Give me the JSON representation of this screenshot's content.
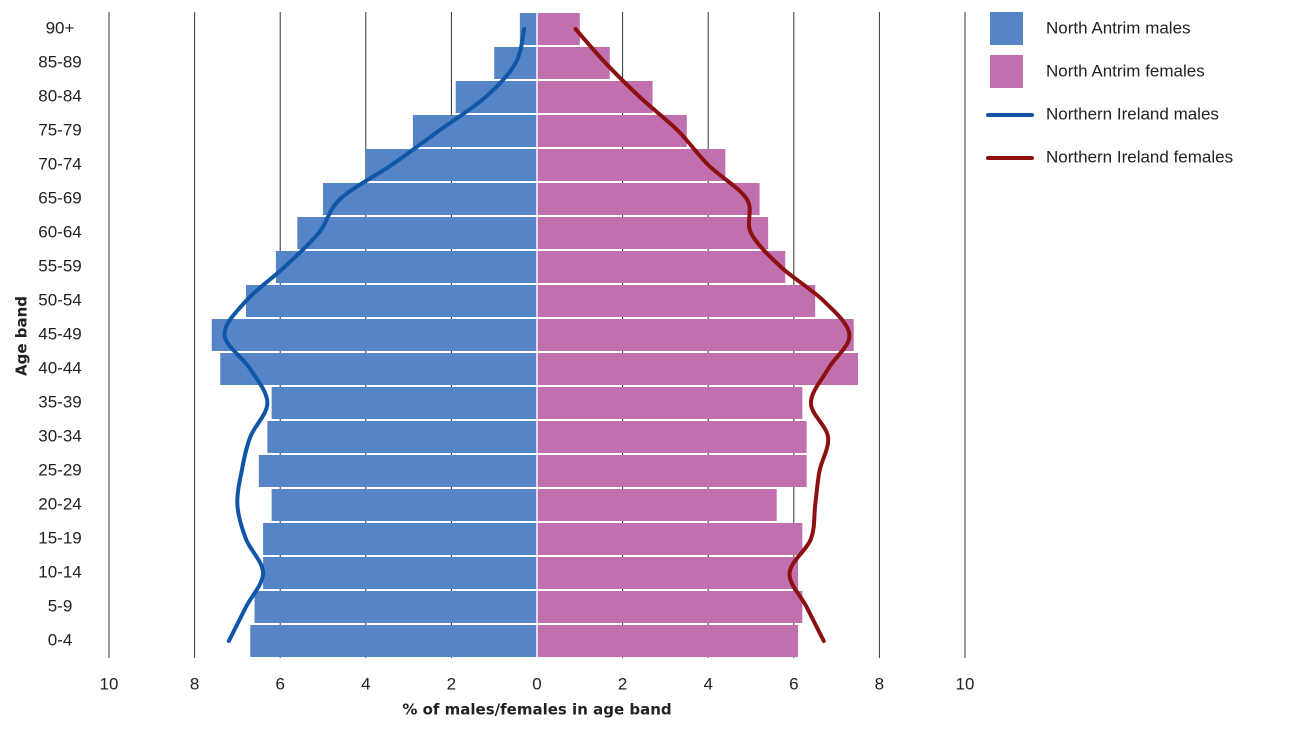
{
  "chart_data": {
    "type": "bar",
    "orientation": "horizontal",
    "xlabel": "% of males/females in age band",
    "ylabel": "Age band",
    "categories": [
      "0-4",
      "5-9",
      "10-14",
      "15-19",
      "20-24",
      "25-29",
      "30-34",
      "35-39",
      "40-44",
      "45-49",
      "50-54",
      "55-59",
      "60-64",
      "65-69",
      "70-74",
      "75-79",
      "80-84",
      "85-89",
      "90+"
    ],
    "xlim": [
      -10,
      10
    ],
    "xticks": [
      {
        "value": -10,
        "label": "10"
      },
      {
        "value": -8,
        "label": "8"
      },
      {
        "value": -6,
        "label": "6"
      },
      {
        "value": -4,
        "label": "4"
      },
      {
        "value": -2,
        "label": "2"
      },
      0,
      2,
      4,
      6,
      8,
      10
    ],
    "grid": true,
    "legend": "upper right",
    "series": [
      {
        "name": "North Antrim males",
        "kind": "bar",
        "color": "#5585c7",
        "values": [
          -6.7,
          -6.6,
          -6.4,
          -6.4,
          -6.2,
          -6.5,
          -6.3,
          -6.2,
          -7.4,
          -7.6,
          -6.8,
          -6.1,
          -5.6,
          -5.0,
          -4.0,
          -2.9,
          -1.9,
          -1.0,
          -0.4
        ]
      },
      {
        "name": "North Antrim females",
        "kind": "bar",
        "color": "#c070ae",
        "values": [
          6.1,
          6.2,
          6.1,
          6.2,
          5.6,
          6.3,
          6.3,
          6.2,
          7.5,
          7.4,
          6.5,
          5.8,
          5.4,
          5.2,
          4.4,
          3.5,
          2.7,
          1.7,
          1.0
        ]
      },
      {
        "name": "Northern Ireland males",
        "kind": "line",
        "color": "#0f57a6",
        "values": [
          -7.2,
          -6.8,
          -6.4,
          -6.8,
          -7.0,
          -6.9,
          -6.7,
          -6.3,
          -6.7,
          -7.3,
          -6.8,
          -5.9,
          -5.1,
          -4.6,
          -3.4,
          -2.3,
          -1.2,
          -0.5,
          -0.3
        ]
      },
      {
        "name": "Northern Ireland females",
        "kind": "line",
        "color": "#8c1010",
        "values": [
          6.7,
          6.3,
          5.9,
          6.4,
          6.5,
          6.6,
          6.8,
          6.4,
          6.8,
          7.3,
          6.7,
          5.7,
          5.0,
          4.9,
          4.0,
          3.3,
          2.4,
          1.6,
          0.9
        ]
      }
    ]
  }
}
